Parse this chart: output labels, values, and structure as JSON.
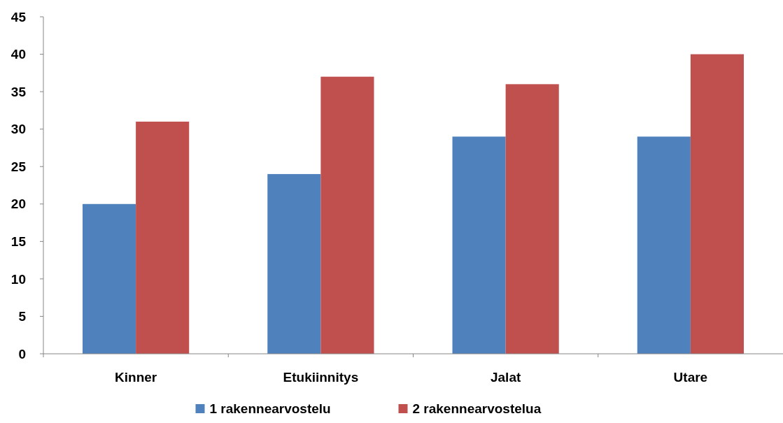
{
  "chart_data": {
    "type": "bar",
    "categories": [
      "Kinner",
      "Etukiinnitys",
      "Jalat",
      "Utare"
    ],
    "series": [
      {
        "name": "1 rakennearvostelu",
        "color": "#4f81bd",
        "values": [
          20,
          24,
          29,
          29
        ]
      },
      {
        "name": "2 rakennearvostelua",
        "color": "#c0504d",
        "values": [
          31,
          37,
          36,
          40
        ]
      }
    ],
    "ylim": [
      0,
      45
    ],
    "yticks": [
      0,
      5,
      10,
      15,
      20,
      25,
      30,
      35,
      40,
      45
    ],
    "grid": false,
    "legend": "bottom"
  }
}
